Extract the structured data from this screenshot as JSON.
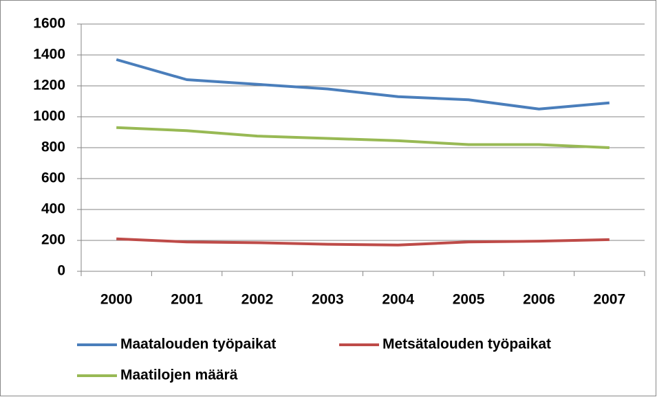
{
  "chart_data": {
    "type": "line",
    "categories": [
      "2000",
      "2001",
      "2002",
      "2003",
      "2004",
      "2005",
      "2006",
      "2007"
    ],
    "series": [
      {
        "name": "Maatalouden työpaikat",
        "color": "#4a7ebb",
        "values": [
          1370,
          1240,
          1210,
          1180,
          1130,
          1110,
          1050,
          1090
        ]
      },
      {
        "name": "Metsätalouden työpaikat",
        "color": "#be4b48",
        "values": [
          210,
          190,
          185,
          175,
          170,
          190,
          195,
          205
        ]
      },
      {
        "name": "Maatilojen määrä",
        "color": "#98b954",
        "values": [
          930,
          910,
          875,
          860,
          845,
          820,
          820,
          800
        ]
      }
    ],
    "ylim": [
      0,
      1600
    ],
    "yticks": [
      0,
      200,
      400,
      600,
      800,
      1000,
      1200,
      1400,
      1600
    ],
    "grid": true,
    "legend": "bottom"
  }
}
